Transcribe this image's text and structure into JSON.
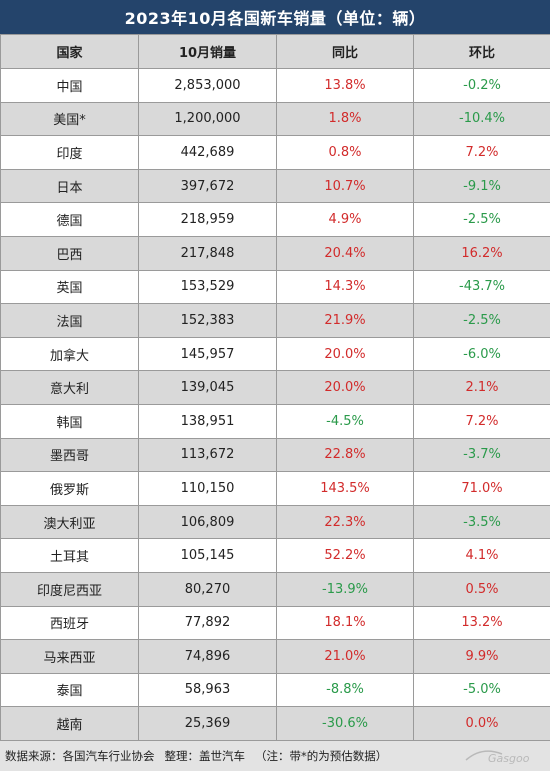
{
  "title": "2023年10月各国新车销量（单位：辆）",
  "headers": [
    "国家",
    "10月销量",
    "同比",
    "环比"
  ],
  "rows": [
    {
      "country": "中国",
      "sales": "2,853,000",
      "yoy": "13.8%",
      "mom": "-0.2%"
    },
    {
      "country": "美国*",
      "sales": "1,200,000",
      "yoy": "1.8%",
      "mom": "-10.4%"
    },
    {
      "country": "印度",
      "sales": "442,689",
      "yoy": "0.8%",
      "mom": "7.2%"
    },
    {
      "country": "日本",
      "sales": "397,672",
      "yoy": "10.7%",
      "mom": "-9.1%"
    },
    {
      "country": "德国",
      "sales": "218,959",
      "yoy": "4.9%",
      "mom": "-2.5%"
    },
    {
      "country": "巴西",
      "sales": "217,848",
      "yoy": "20.4%",
      "mom": "16.2%"
    },
    {
      "country": "英国",
      "sales": "153,529",
      "yoy": "14.3%",
      "mom": "-43.7%"
    },
    {
      "country": "法国",
      "sales": "152,383",
      "yoy": "21.9%",
      "mom": "-2.5%"
    },
    {
      "country": "加拿大",
      "sales": "145,957",
      "yoy": "20.0%",
      "mom": "-6.0%"
    },
    {
      "country": "意大利",
      "sales": "139,045",
      "yoy": "20.0%",
      "mom": "2.1%"
    },
    {
      "country": "韩国",
      "sales": "138,951",
      "yoy": "-4.5%",
      "mom": "7.2%"
    },
    {
      "country": "墨西哥",
      "sales": "113,672",
      "yoy": "22.8%",
      "mom": "-3.7%"
    },
    {
      "country": "俄罗斯",
      "sales": "110,150",
      "yoy": "143.5%",
      "mom": "71.0%"
    },
    {
      "country": "澳大利亚",
      "sales": "106,809",
      "yoy": "22.3%",
      "mom": "-3.5%"
    },
    {
      "country": "土耳其",
      "sales": "105,145",
      "yoy": "52.2%",
      "mom": "4.1%"
    },
    {
      "country": "印度尼西亚",
      "sales": "80,270",
      "yoy": "-13.9%",
      "mom": "0.5%"
    },
    {
      "country": "西班牙",
      "sales": "77,892",
      "yoy": "18.1%",
      "mom": "13.2%"
    },
    {
      "country": "马来西亚",
      "sales": "74,896",
      "yoy": "21.0%",
      "mom": "9.9%"
    },
    {
      "country": "泰国",
      "sales": "58,963",
      "yoy": "-8.8%",
      "mom": "-5.0%"
    },
    {
      "country": "越南",
      "sales": "25,369",
      "yoy": "-30.6%",
      "mom": "0.0%"
    }
  ],
  "footer": {
    "source": "数据来源：各国汽车行业协会",
    "editor": "整理：盖世汽车",
    "note": "（注：带*的为预估数据）",
    "logo_text": "Gasgoo"
  },
  "colors": {
    "title_bg": "#24446b",
    "header_bg": "#d9d9d9",
    "positive": "#d22b2b",
    "negative": "#2a9a4a"
  }
}
